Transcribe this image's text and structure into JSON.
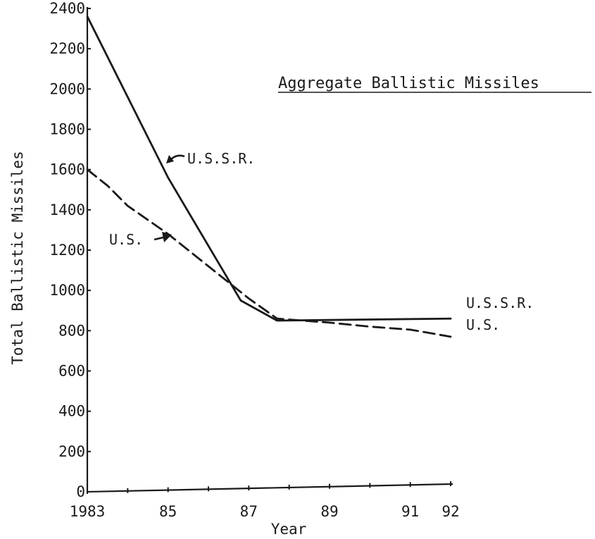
{
  "chart_data": {
    "type": "line",
    "title": "Aggregate Ballistic Missiles",
    "xlabel": "Year",
    "ylabel": "Total Ballistic Missiles",
    "xlim": [
      1983,
      1992
    ],
    "ylim": [
      0,
      2400
    ],
    "x_ticks": [
      1983,
      1984,
      1985,
      1986,
      1987,
      1988,
      1989,
      1990,
      1991,
      1992
    ],
    "x_tick_labels": [
      {
        "x": 1983,
        "label": "1983"
      },
      {
        "x": 1985,
        "label": "85"
      },
      {
        "x": 1987,
        "label": "87"
      },
      {
        "x": 1989,
        "label": "89"
      },
      {
        "x": 1991,
        "label": "91"
      },
      {
        "x": 1992,
        "label": "92"
      }
    ],
    "y_ticks": [
      0,
      200,
      400,
      600,
      800,
      1000,
      1200,
      1400,
      1600,
      1800,
      2000,
      2200,
      2400
    ],
    "grid": false,
    "series": [
      {
        "name": "U.S.S.R.",
        "style": "solid",
        "x": [
          1983,
          1985,
          1986.8,
          1987.7,
          1992
        ],
        "values": [
          2360,
          1560,
          950,
          850,
          860
        ],
        "callout": "U.S.S.R.",
        "end_label": "U.S.S.R."
      },
      {
        "name": "U.S.",
        "style": "dashed",
        "x": [
          1983,
          1983.5,
          1984,
          1985,
          1986,
          1987,
          1987.7,
          1989,
          1990,
          1991,
          1992
        ],
        "values": [
          1600,
          1520,
          1420,
          1280,
          1120,
          960,
          860,
          840,
          820,
          805,
          770
        ],
        "callout": "U.S.",
        "end_label": "U.S."
      }
    ]
  }
}
